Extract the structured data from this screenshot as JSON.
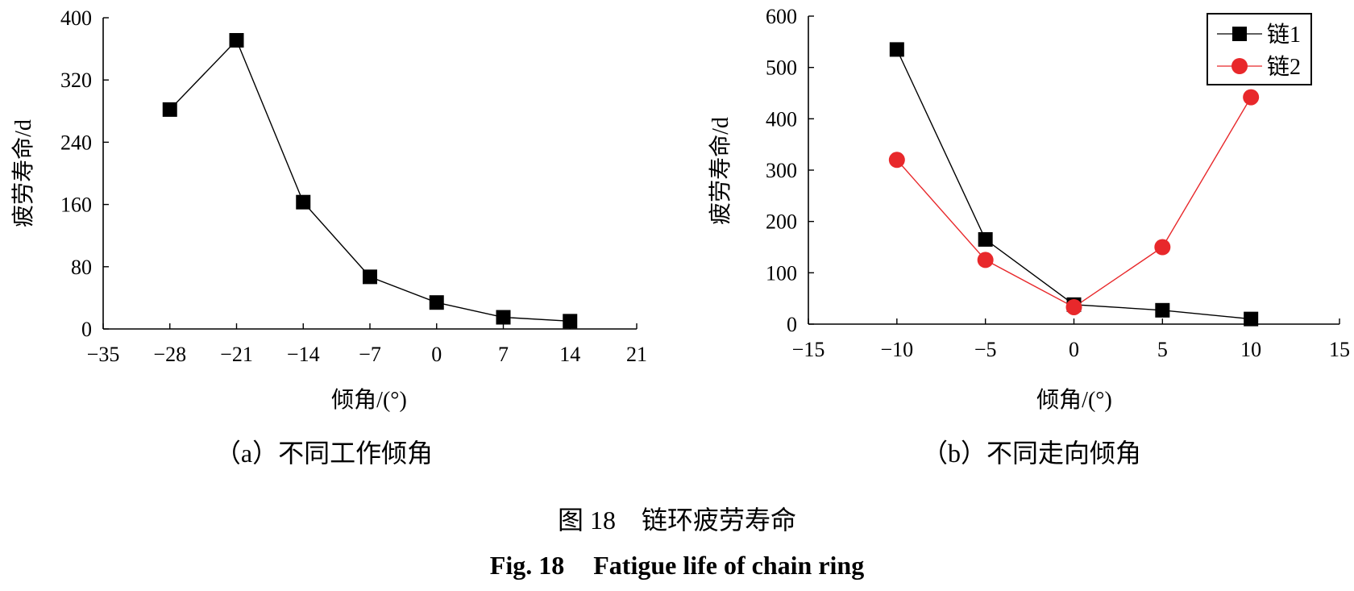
{
  "chart_data": [
    {
      "type": "line",
      "x": [
        -28,
        -21,
        -14,
        -7,
        0,
        7,
        14
      ],
      "series": [
        {
          "values": [
            282,
            371,
            163,
            67,
            34,
            15,
            10
          ],
          "marker": "square",
          "color": "#000000"
        }
      ],
      "xlabel": "倾角/(°)",
      "ylabel": "疲劳寿命/d",
      "xlim": [
        -35,
        21
      ],
      "ylim": [
        0,
        400
      ],
      "xticks": [
        "−35",
        "−28",
        "−21",
        "−14",
        "−7",
        "0",
        "7",
        "14",
        "21"
      ],
      "yticks": [
        "0",
        "80",
        "160",
        "240",
        "320",
        "400"
      ],
      "subcaption": "（a）不同工作倾角",
      "grid": false
    },
    {
      "type": "line",
      "x": [
        -10,
        -5,
        0,
        5,
        10
      ],
      "series": [
        {
          "name": "链1",
          "values": [
            535,
            165,
            38,
            27,
            10
          ],
          "marker": "square",
          "color": "#000000"
        },
        {
          "name": "链2",
          "values": [
            320,
            125,
            33,
            150,
            442
          ],
          "marker": "circle",
          "color": "#e8282b"
        }
      ],
      "xlabel": "倾角/(°)",
      "ylabel": "疲劳寿命/d",
      "xlim": [
        -15,
        15
      ],
      "ylim": [
        0,
        600
      ],
      "xticks": [
        "−15",
        "−10",
        "−5",
        "0",
        "5",
        "10",
        "15"
      ],
      "yticks": [
        "0",
        "100",
        "200",
        "300",
        "400",
        "500",
        "600"
      ],
      "legend_position": "top-right",
      "subcaption": "（b）不同走向倾角",
      "grid": false
    }
  ],
  "caption": {
    "cn": "图 18　链环疲劳寿命",
    "en_label": "Fig. 18",
    "en_title": "Fatigue life of chain ring"
  }
}
